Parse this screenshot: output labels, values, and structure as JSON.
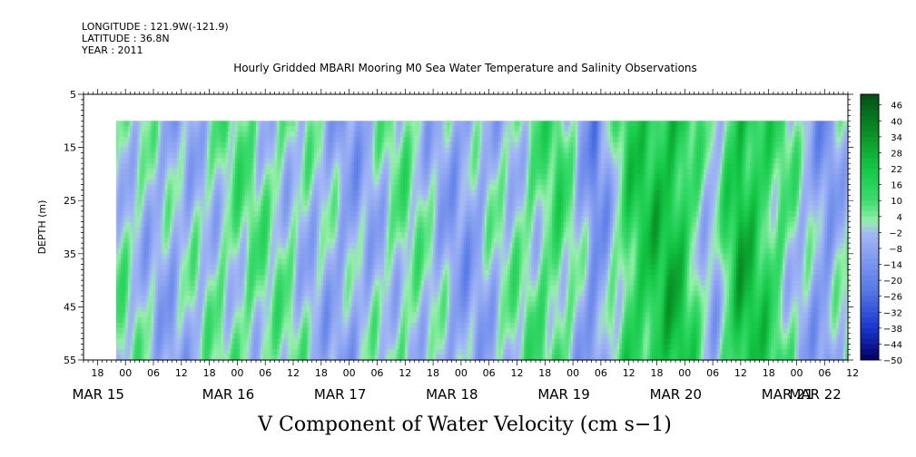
{
  "header": {
    "longitude": "LONGITUDE : 121.9W(-121.9)",
    "latitude": "LATITUDE : 36.8N",
    "year": "YEAR : 2011",
    "title": "Hourly Gridded MBARI Mooring M0 Sea Water Temperature and Salinity Observations"
  },
  "chart_data": {
    "type": "heatmap",
    "title": "Hourly Gridded MBARI Mooring M0 Sea Water Temperature and Salinity Observations",
    "xlabel": "",
    "ylabel": "DEPTH (m)",
    "caption": "V Component of Water Velocity (cm s−1)",
    "x_time_range_hours": [
      -9,
      155
    ],
    "data_time_range_hours": [
      -2,
      155
    ],
    "ylim": [
      55,
      5
    ],
    "data_depth_range": [
      10,
      55
    ],
    "y_ticks": [
      "5",
      "15",
      "25",
      "35",
      "45",
      "55"
    ],
    "x_hour_labels": [
      "18",
      "00",
      "06",
      "12",
      "18",
      "00",
      "06",
      "12",
      "18",
      "00",
      "06",
      "12",
      "18",
      "00",
      "06",
      "12",
      "18",
      "00",
      "06",
      "12",
      "18",
      "00",
      "06",
      "12",
      "18",
      "00",
      "06",
      "12"
    ],
    "x_date_labels": [
      "MAR 15",
      "MAR 16",
      "MAR 17",
      "MAR 18",
      "MAR 19",
      "MAR 20",
      "MAR 21",
      "MAR 22"
    ],
    "colorbar": {
      "min": -50,
      "max": 50,
      "labels": [
        "46",
        "40",
        "34",
        "28",
        "22",
        "16",
        "10",
        "4",
        "−2",
        "−8",
        "−14",
        "−20",
        "−26",
        "−32",
        "−38",
        "−44",
        "−50"
      ]
    },
    "approx_column_means": [
      {
        "hour": -2,
        "value": 3
      },
      {
        "hour": 10,
        "value": -6
      },
      {
        "hour": 24,
        "value": 5
      },
      {
        "hour": 36,
        "value": 1
      },
      {
        "hour": 48,
        "value": -8
      },
      {
        "hour": 60,
        "value": 4
      },
      {
        "hour": 72,
        "value": -9
      },
      {
        "hour": 84,
        "value": 2
      },
      {
        "hour": 93,
        "value": 10
      },
      {
        "hour": 101,
        "value": -16
      },
      {
        "hour": 108,
        "value": 15
      },
      {
        "hour": 118,
        "value": 24
      },
      {
        "hour": 126,
        "value": -6
      },
      {
        "hour": 132,
        "value": 25
      },
      {
        "hour": 140,
        "value": 9
      },
      {
        "hour": 150,
        "value": -12
      },
      {
        "hour": 155,
        "value": 2
      }
    ]
  }
}
